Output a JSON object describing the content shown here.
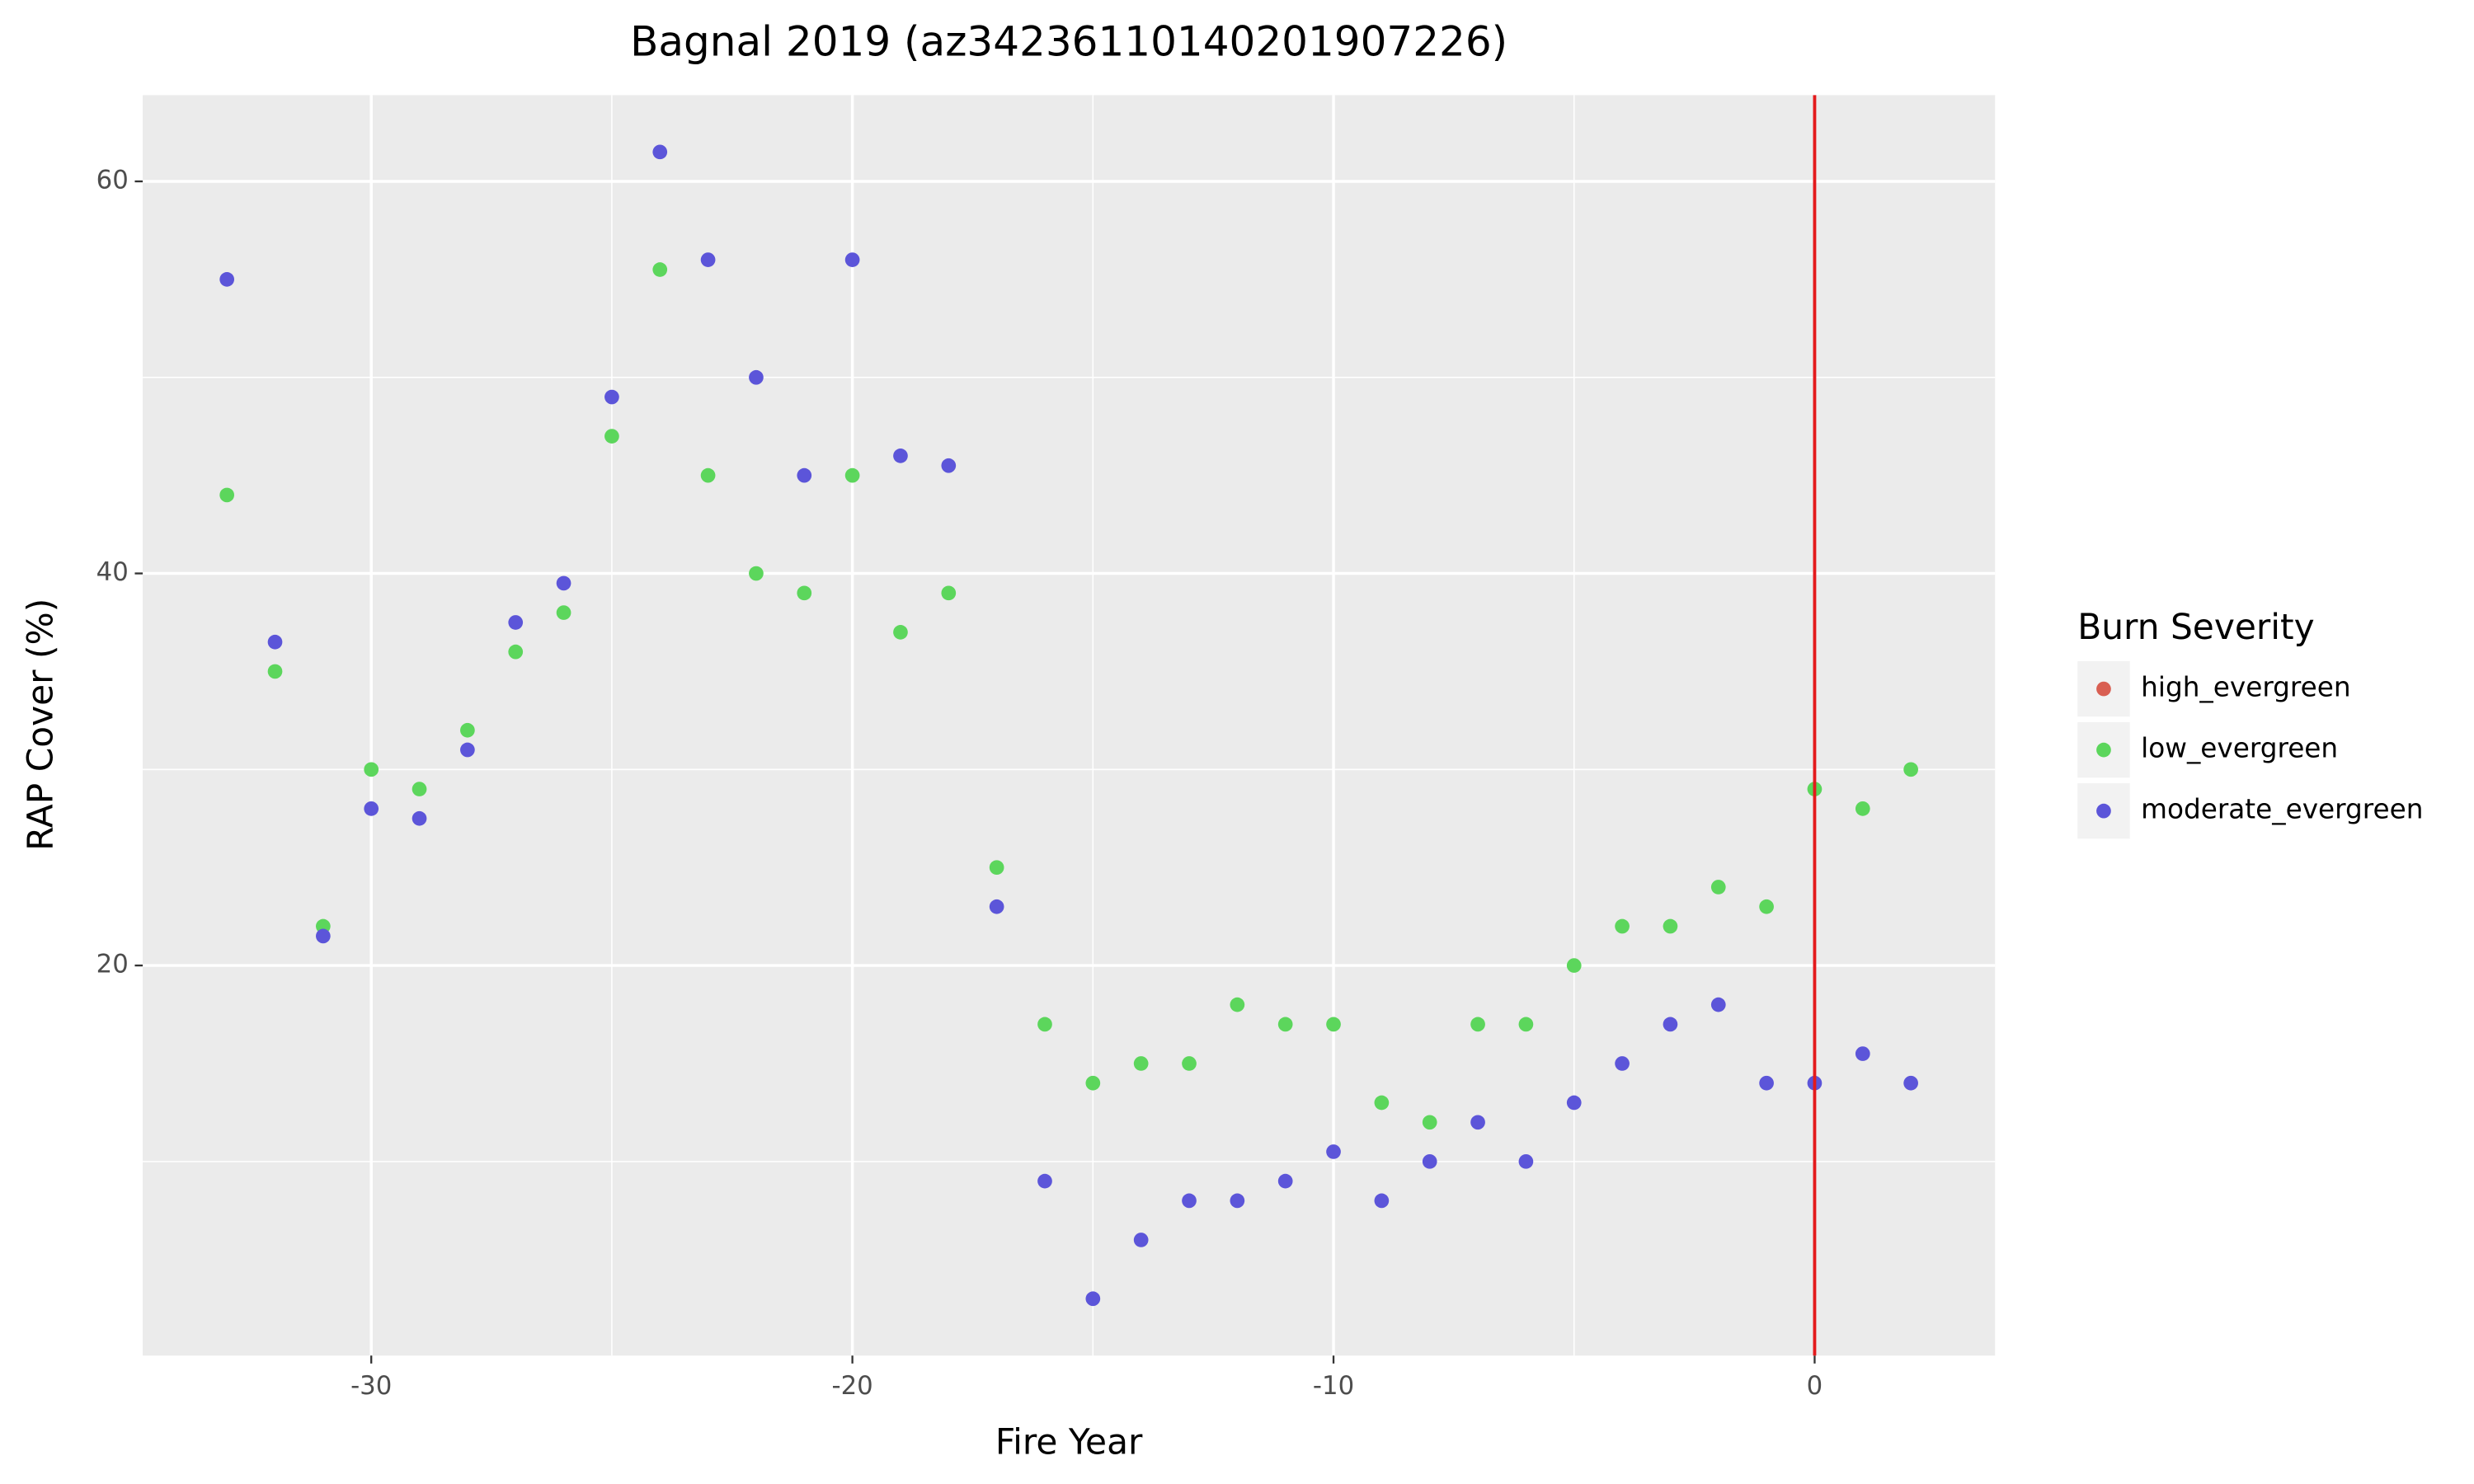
{
  "chart_data": {
    "type": "scatter",
    "title": "Bagnal 2019 (az34236110140201907226)",
    "x_label": "Fire Year",
    "y_label": "RAP Cover (%)",
    "legend_title": "Burn Severity",
    "legend_position": "right",
    "grid": true,
    "xlim": [
      -34.75,
      3.75
    ],
    "ylim": [
      0.1,
      64.4
    ],
    "xticks": [
      -30,
      -20,
      -10,
      0
    ],
    "yticks": [
      20,
      40,
      60
    ],
    "minor_xticks": [
      -25,
      -15,
      -5
    ],
    "minor_yticks": [
      10,
      30,
      50
    ],
    "vline": {
      "x": 0,
      "color": "#e31a1c"
    },
    "x": [
      -33,
      -32,
      -31,
      -30,
      -29,
      -28,
      -27,
      -26,
      -25,
      -24,
      -23,
      -22,
      -21,
      -20,
      -19,
      -18,
      -17,
      -16,
      -15,
      -14,
      -13,
      -12,
      -11,
      -10,
      -9,
      -8,
      -7,
      -6,
      -5,
      -4,
      -3,
      -2,
      -1,
      0,
      1,
      2
    ],
    "series": [
      {
        "name": "high_evergreen",
        "color": "#d95f52",
        "values": [
          null,
          null,
          null,
          null,
          null,
          null,
          null,
          null,
          null,
          null,
          null,
          null,
          null,
          null,
          null,
          null,
          null,
          null,
          null,
          null,
          null,
          null,
          null,
          null,
          null,
          null,
          null,
          null,
          null,
          null,
          null,
          null,
          null,
          null,
          null,
          null
        ]
      },
      {
        "name": "low_evergreen",
        "color": "#5cd65c",
        "values": [
          44,
          35,
          22,
          30,
          29,
          32,
          36,
          38,
          47,
          55.5,
          45,
          40,
          39,
          45,
          37,
          39,
          25,
          17,
          14,
          15,
          15,
          18,
          17,
          17,
          13,
          12,
          17,
          17,
          20,
          22,
          22,
          24,
          23,
          29,
          28,
          30
        ]
      },
      {
        "name": "moderate_evergreen",
        "color": "#5c55d9",
        "values": [
          55,
          36.5,
          21.5,
          28,
          27.5,
          31,
          37.5,
          39.5,
          49,
          61.5,
          56,
          50,
          45,
          56,
          46,
          45.5,
          23,
          9,
          3,
          6,
          8,
          8,
          9,
          10.5,
          8,
          10,
          12,
          10,
          13,
          15,
          17,
          18,
          14,
          14,
          15.5,
          14
        ]
      }
    ]
  }
}
